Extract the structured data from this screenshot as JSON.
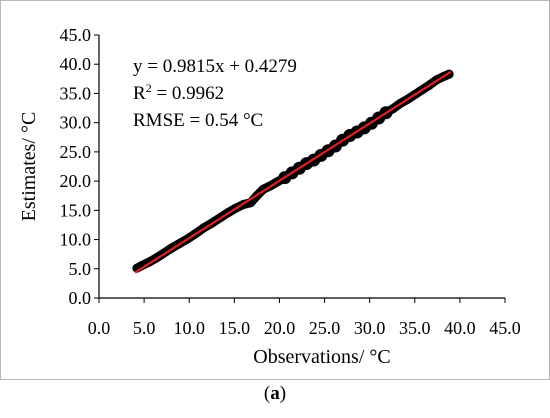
{
  "chart_data": {
    "type": "scatter",
    "xlabel": "Observations/ °C",
    "ylabel": "Estimates/ °C",
    "xlim": [
      0,
      45
    ],
    "ylim": [
      0,
      45
    ],
    "xticks": [
      "0.0",
      "5.0",
      "10.0",
      "15.0",
      "20.0",
      "25.0",
      "30.0",
      "35.0",
      "40.0",
      "45.0"
    ],
    "yticks": [
      "0.0",
      "5.0",
      "10.0",
      "15.0",
      "20.0",
      "25.0",
      "30.0",
      "35.0",
      "40.0",
      "45.0"
    ],
    "grid": false,
    "annotations": [
      "y = 0.9815x + 0.4279",
      "R",
      "2",
      " = 0.9962",
      "RMSE = 0.54 °C"
    ],
    "fit_line": {
      "slope": 0.9815,
      "intercept": 0.4279,
      "x_range": [
        4.0,
        39.0
      ],
      "color": "#e02020"
    },
    "point_color": "#000000",
    "series": [
      {
        "x": [
          4.2,
          4.8,
          5.5,
          6.3,
          7.1,
          8.0,
          8.9,
          9.8,
          10.7,
          11.6,
          12.5,
          13.4,
          14.3,
          15.2,
          16.0,
          16.8,
          17.5,
          18.2,
          19.0,
          19.8,
          20.6,
          21.4,
          22.2,
          23.0,
          23.8,
          24.6,
          25.4,
          26.2,
          27.0,
          27.8,
          28.6,
          29.4,
          30.2,
          31.0,
          31.8,
          32.6,
          33.4,
          34.2,
          35.0,
          35.8,
          36.6,
          37.4,
          38.2,
          38.8
        ],
        "y": [
          5.1,
          5.6,
          6.1,
          6.8,
          7.6,
          8.5,
          9.3,
          10.1,
          11.0,
          12.0,
          12.8,
          13.7,
          14.6,
          15.4,
          16.0,
          16.3,
          17.5,
          18.6,
          19.2,
          19.9,
          20.6,
          21.4,
          22.2,
          23.0,
          23.6,
          24.4,
          25.2,
          26.0,
          27.0,
          27.8,
          28.4,
          29.1,
          29.9,
          30.8,
          31.7,
          32.4,
          33.3,
          34.0,
          34.8,
          35.6,
          36.4,
          37.3,
          37.9,
          38.3
        ]
      }
    ]
  },
  "figure": {
    "caption_label": "a"
  }
}
